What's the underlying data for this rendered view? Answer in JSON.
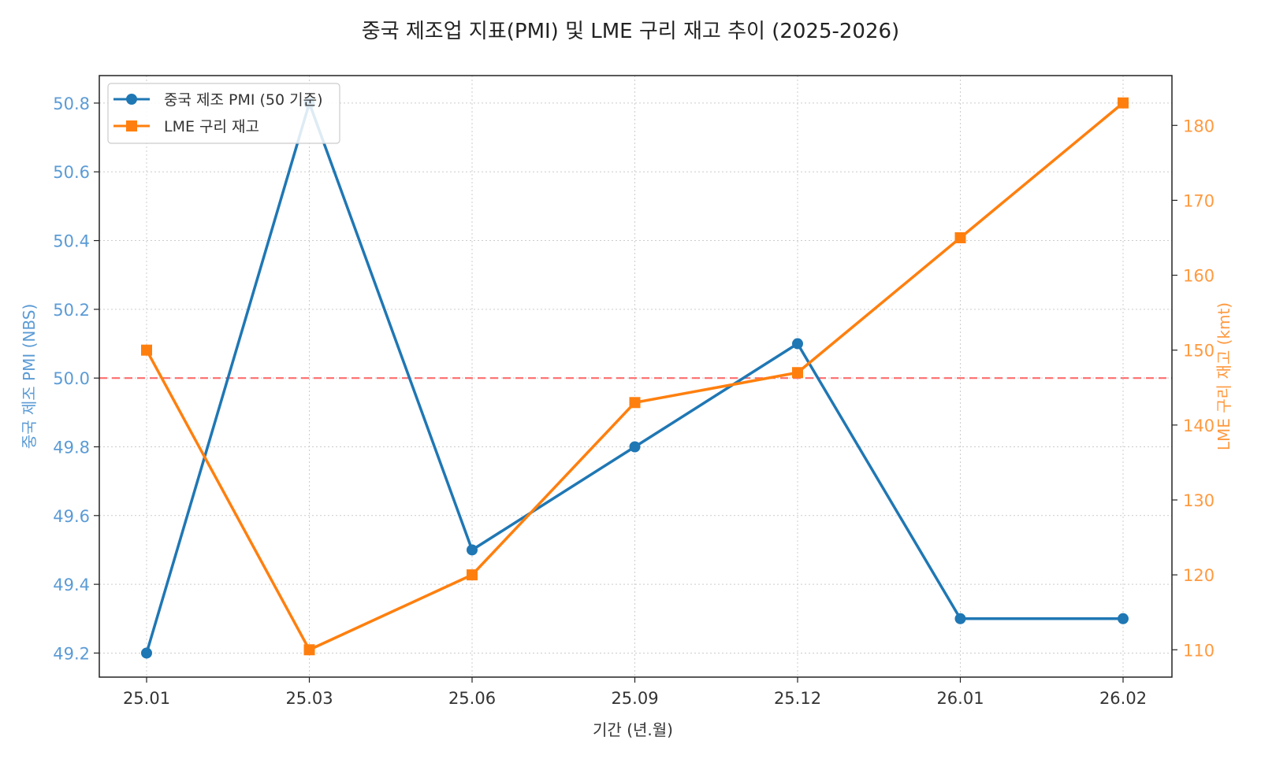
{
  "chart_data": {
    "type": "line",
    "title": "중국 제조업 지표(PMI) 및 LME 구리 재고 추이 (2025-2026)",
    "xlabel": "기간 (년.월)",
    "categories": [
      "25.01",
      "25.03",
      "25.06",
      "25.09",
      "25.12",
      "26.01",
      "26.02"
    ],
    "series": [
      {
        "name": "중국 제조 PMI (50 기준)",
        "axis": "left",
        "color": "#1f77b4",
        "marker": "circle",
        "values": [
          49.2,
          50.8,
          49.5,
          49.8,
          50.1,
          49.3,
          49.3
        ]
      },
      {
        "name": "LME 구리 재고",
        "axis": "right",
        "color": "#ff7f0e",
        "marker": "square",
        "values": [
          150,
          110,
          120,
          143,
          147,
          165,
          183
        ]
      }
    ],
    "left_axis": {
      "label": "중국 제조 PMI (NBS)",
      "color": "#5b9bd5",
      "ylim": [
        49.13,
        50.88
      ],
      "ticks": [
        "49.2",
        "49.4",
        "49.6",
        "49.8",
        "50.0",
        "50.2",
        "50.4",
        "50.6",
        "50.8"
      ]
    },
    "right_axis": {
      "label": "LME 구리 재고 (kmt)",
      "color": "#ff9a40",
      "ylim": [
        106.35,
        186.65
      ],
      "ticks": [
        "110",
        "120",
        "130",
        "140",
        "150",
        "160",
        "170",
        "180"
      ]
    },
    "reference_line": {
      "value": 50.0,
      "axis": "left",
      "color": "#ff5555",
      "style": "dashed"
    },
    "grid": true,
    "legend_position": "top-left"
  }
}
